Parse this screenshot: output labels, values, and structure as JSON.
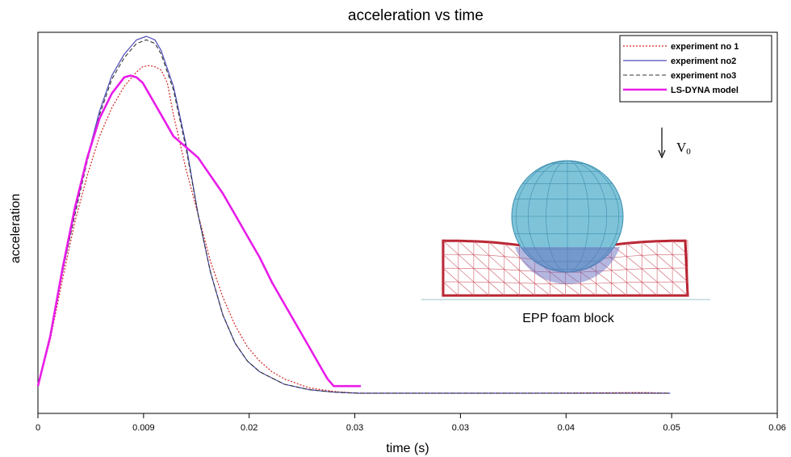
{
  "chart_data": {
    "type": "line",
    "title": "acceleration vs time",
    "xlabel": "time (s)",
    "ylabel": "acceleration",
    "x_tick_labels": [
      "0",
      "0.009",
      "0.02",
      "0.03",
      "0.03",
      "0.04",
      "0.05",
      "0.06"
    ],
    "xlim": [
      0,
      0.06
    ],
    "ylim": [
      0,
      1.0
    ],
    "y_tick_labels": [],
    "grid": false,
    "legend_position": "top-right",
    "series": [
      {
        "name": "experiment no 1",
        "color": "#d42020",
        "style": "dotted",
        "points": [
          [
            0,
            0.02
          ],
          [
            0.001,
            0.15
          ],
          [
            0.002,
            0.32
          ],
          [
            0.003,
            0.48
          ],
          [
            0.004,
            0.61
          ],
          [
            0.005,
            0.72
          ],
          [
            0.006,
            0.8
          ],
          [
            0.007,
            0.86
          ],
          [
            0.008,
            0.9
          ],
          [
            0.0085,
            0.915
          ],
          [
            0.009,
            0.918
          ],
          [
            0.0095,
            0.915
          ],
          [
            0.01,
            0.905
          ],
          [
            0.0105,
            0.87
          ],
          [
            0.011,
            0.78
          ],
          [
            0.012,
            0.63
          ],
          [
            0.013,
            0.5
          ],
          [
            0.014,
            0.37
          ],
          [
            0.015,
            0.27
          ],
          [
            0.016,
            0.19
          ],
          [
            0.017,
            0.13
          ],
          [
            0.018,
            0.09
          ],
          [
            0.019,
            0.06
          ],
          [
            0.02,
            0.04
          ],
          [
            0.022,
            0.015
          ],
          [
            0.024,
            0.005
          ],
          [
            0.026,
            0.0
          ],
          [
            0.03,
            0.0
          ],
          [
            0.04,
            0.0
          ],
          [
            0.0492,
            0.002
          ],
          [
            0.0513,
            0.0
          ]
        ]
      },
      {
        "name": "experiment no2",
        "color": "#4a4ab8",
        "style": "solid",
        "points": [
          [
            0,
            0.02
          ],
          [
            0.001,
            0.16
          ],
          [
            0.002,
            0.34
          ],
          [
            0.003,
            0.51
          ],
          [
            0.004,
            0.66
          ],
          [
            0.005,
            0.79
          ],
          [
            0.006,
            0.89
          ],
          [
            0.007,
            0.95
          ],
          [
            0.008,
            0.99
          ],
          [
            0.0088,
            1.0
          ],
          [
            0.0095,
            0.99
          ],
          [
            0.01,
            0.96
          ],
          [
            0.011,
            0.86
          ],
          [
            0.012,
            0.7
          ],
          [
            0.013,
            0.5
          ],
          [
            0.014,
            0.34
          ],
          [
            0.015,
            0.22
          ],
          [
            0.016,
            0.14
          ],
          [
            0.017,
            0.09
          ],
          [
            0.018,
            0.06
          ],
          [
            0.02,
            0.025
          ],
          [
            0.022,
            0.01
          ],
          [
            0.024,
            0.003
          ],
          [
            0.026,
            0.0
          ],
          [
            0.03,
            0.0
          ],
          [
            0.04,
            0.0
          ],
          [
            0.0513,
            0.0
          ]
        ]
      },
      {
        "name": "experiment no3",
        "color": "#333333",
        "style": "dashed",
        "points": [
          [
            0,
            0.02
          ],
          [
            0.001,
            0.16
          ],
          [
            0.002,
            0.34
          ],
          [
            0.003,
            0.5
          ],
          [
            0.004,
            0.65
          ],
          [
            0.005,
            0.78
          ],
          [
            0.006,
            0.88
          ],
          [
            0.007,
            0.94
          ],
          [
            0.008,
            0.98
          ],
          [
            0.0088,
            0.99
          ],
          [
            0.0095,
            0.98
          ],
          [
            0.01,
            0.95
          ],
          [
            0.011,
            0.85
          ],
          [
            0.012,
            0.69
          ],
          [
            0.013,
            0.5
          ],
          [
            0.014,
            0.34
          ],
          [
            0.015,
            0.22
          ],
          [
            0.016,
            0.14
          ],
          [
            0.017,
            0.09
          ],
          [
            0.018,
            0.06
          ],
          [
            0.02,
            0.025
          ],
          [
            0.022,
            0.01
          ],
          [
            0.024,
            0.003
          ],
          [
            0.026,
            0.0
          ],
          [
            0.03,
            0.0
          ],
          [
            0.04,
            0.0
          ],
          [
            0.0513,
            0.0
          ]
        ]
      },
      {
        "name": "LS-DYNA model",
        "color": "#e81ce8",
        "style": "solid-thick",
        "points": [
          [
            0,
            0.02
          ],
          [
            0.001,
            0.16
          ],
          [
            0.002,
            0.35
          ],
          [
            0.003,
            0.52
          ],
          [
            0.004,
            0.66
          ],
          [
            0.005,
            0.77
          ],
          [
            0.006,
            0.84
          ],
          [
            0.007,
            0.885
          ],
          [
            0.0075,
            0.89
          ],
          [
            0.008,
            0.885
          ],
          [
            0.0085,
            0.87
          ],
          [
            0.009,
            0.84
          ],
          [
            0.01,
            0.78
          ],
          [
            0.011,
            0.72
          ],
          [
            0.012,
            0.69
          ],
          [
            0.013,
            0.66
          ],
          [
            0.014,
            0.61
          ],
          [
            0.015,
            0.56
          ],
          [
            0.016,
            0.5
          ],
          [
            0.017,
            0.44
          ],
          [
            0.018,
            0.38
          ],
          [
            0.019,
            0.31
          ],
          [
            0.02,
            0.25
          ],
          [
            0.021,
            0.19
          ],
          [
            0.022,
            0.13
          ],
          [
            0.023,
            0.07
          ],
          [
            0.0235,
            0.04
          ],
          [
            0.024,
            0.02
          ],
          [
            0.025,
            0.02
          ],
          [
            0.0262,
            0.02
          ]
        ]
      }
    ],
    "inset": {
      "caption": "EPP foam block",
      "velocity_label": "V",
      "velocity_subscript": "0"
    }
  }
}
